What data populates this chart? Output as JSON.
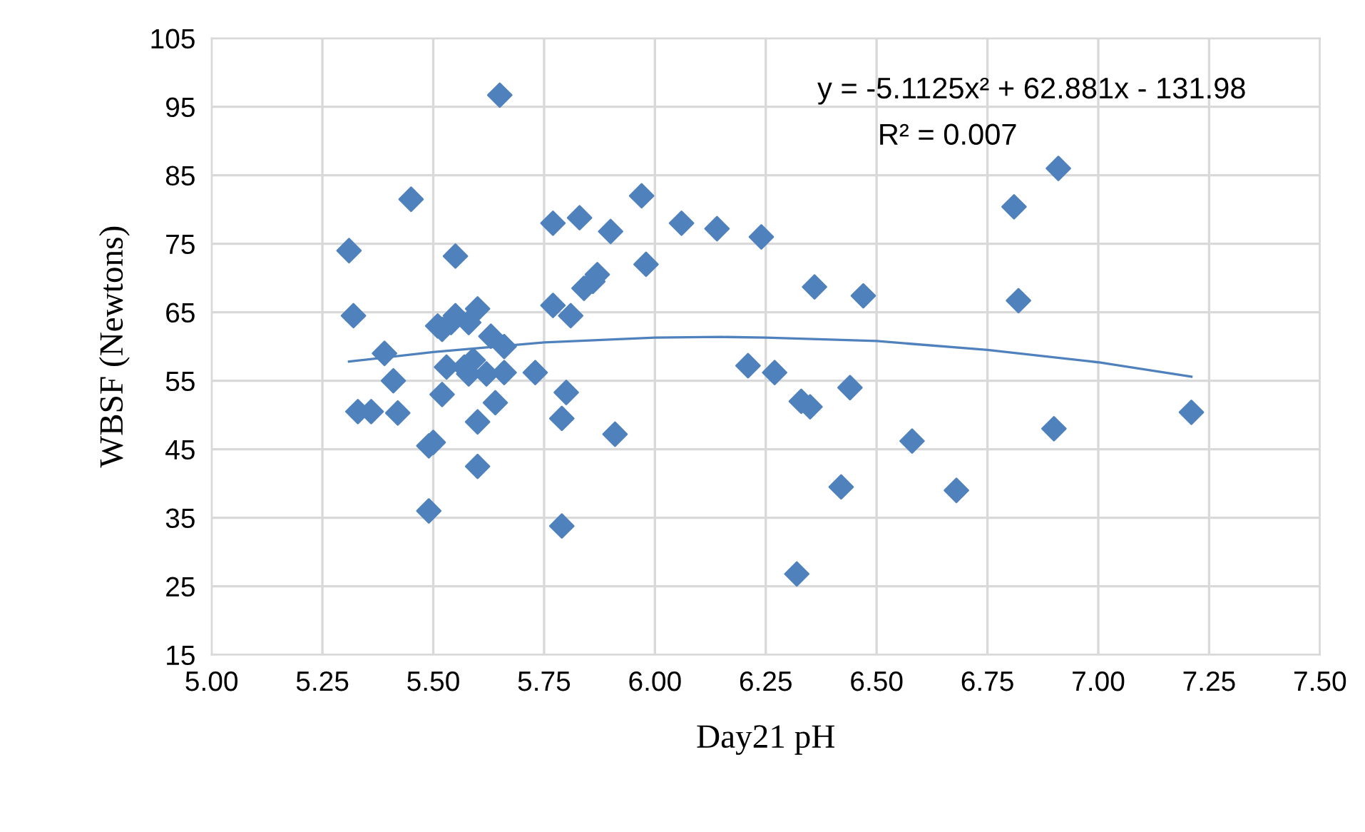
{
  "chart_data": {
    "type": "scatter",
    "xlabel": "Day21 pH",
    "ylabel": "WBSF (Newtons)",
    "xlim": [
      5.0,
      7.5
    ],
    "xticks": [
      {
        "value": 5.0,
        "label": "5.00"
      },
      {
        "value": 5.25,
        "label": "5.25"
      },
      {
        "value": 5.5,
        "label": "5.50"
      },
      {
        "value": 5.75,
        "label": "5.75"
      },
      {
        "value": 6.0,
        "label": "6.00"
      },
      {
        "value": 6.25,
        "label": "6.25"
      },
      {
        "value": 6.5,
        "label": "6.50"
      },
      {
        "value": 6.75,
        "label": "6.75"
      },
      {
        "value": 7.0,
        "label": "7.00"
      },
      {
        "value": 7.25,
        "label": "7.25"
      },
      {
        "value": 7.5,
        "label": "7.50"
      }
    ],
    "ylim": [
      15,
      105
    ],
    "yticks": [
      15,
      25,
      35,
      45,
      55,
      65,
      75,
      85,
      95,
      105
    ],
    "grid": true,
    "marker": "diamond",
    "legend": false,
    "annotations": [
      "y = -5.1125x² + 62.881x - 131.98",
      "R² = 0.007"
    ],
    "series": [
      {
        "color": "#4f81bd",
        "x": [
          5.31,
          5.32,
          5.33,
          5.36,
          5.39,
          5.41,
          5.42,
          5.45,
          5.49,
          5.5,
          5.49,
          5.51,
          5.52,
          5.52,
          5.53,
          5.54,
          5.55,
          5.55,
          5.57,
          5.58,
          5.58,
          5.59,
          5.6,
          5.6,
          5.6,
          5.62,
          5.63,
          5.64,
          5.65,
          5.66,
          5.66,
          5.73,
          5.77,
          5.77,
          5.79,
          5.79,
          5.8,
          5.81,
          5.83,
          5.84,
          5.86,
          5.87,
          5.9,
          5.91,
          5.97,
          5.98,
          6.06,
          6.14,
          6.21,
          6.24,
          6.27,
          6.32,
          6.33,
          6.35,
          6.36,
          6.42,
          6.44,
          6.47,
          6.58,
          6.68,
          6.81,
          6.82,
          6.9,
          6.91,
          7.21
        ],
        "values": [
          74,
          64.5,
          50.5,
          50.5,
          59,
          55,
          50.3,
          81.5,
          45.5,
          46,
          36,
          63,
          53,
          62.5,
          57,
          63.5,
          73.2,
          64.5,
          57,
          56,
          63.5,
          58,
          49,
          65.5,
          42.5,
          56,
          61.5,
          51.8,
          96.7,
          60,
          56.2,
          56.2,
          78,
          66,
          49.5,
          33.8,
          53.3,
          64.5,
          78.8,
          68.5,
          69.5,
          70.5,
          76.8,
          47.2,
          82,
          72,
          78,
          77.2,
          57.2,
          76,
          56.2,
          26.8,
          52,
          51.2,
          68.7,
          39.5,
          54,
          67.4,
          46.2,
          39,
          80.4,
          66.7,
          48,
          86,
          50.4
        ]
      },
      {
        "type": "line",
        "color": "#4f81bd",
        "marker": "none",
        "x": [
          5.31,
          5.5,
          5.75,
          6.0,
          6.15,
          6.25,
          6.5,
          6.75,
          7.0,
          7.21
        ],
        "values": [
          57.8,
          59.2,
          60.6,
          61.3,
          61.4,
          61.3,
          60.8,
          59.5,
          57.7,
          55.6
        ]
      }
    ]
  }
}
